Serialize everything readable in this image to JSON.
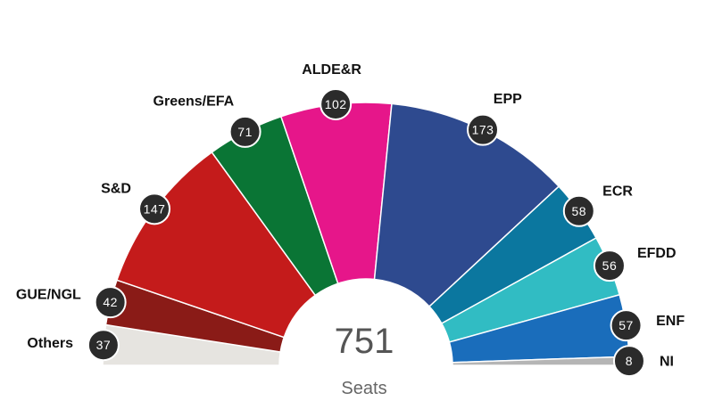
{
  "chart_data": {
    "type": "pie",
    "variant": "parliament-semicircle",
    "title": "",
    "total": {
      "value": "751",
      "label": "Seats"
    },
    "categories": [
      "Others",
      "GUE/NGL",
      "S&D",
      "Greens/EFA",
      "ALDE&R",
      "EPP",
      "ECR",
      "EFDD",
      "ENF",
      "NI"
    ],
    "values": [
      37,
      42,
      147,
      71,
      102,
      173,
      58,
      56,
      57,
      8
    ],
    "labels": [
      "37",
      "42",
      "147",
      "71",
      "102",
      "173",
      "58",
      "56",
      "57",
      "8"
    ],
    "colors": [
      "#e6e4e0",
      "#8a1b17",
      "#c41b1b",
      "#0a7535",
      "#e6168a",
      "#2e4a8f",
      "#0b779f",
      "#31bcc3",
      "#1a6dbb",
      "#b5b5b5"
    ],
    "legend": "labels-around-arc"
  }
}
